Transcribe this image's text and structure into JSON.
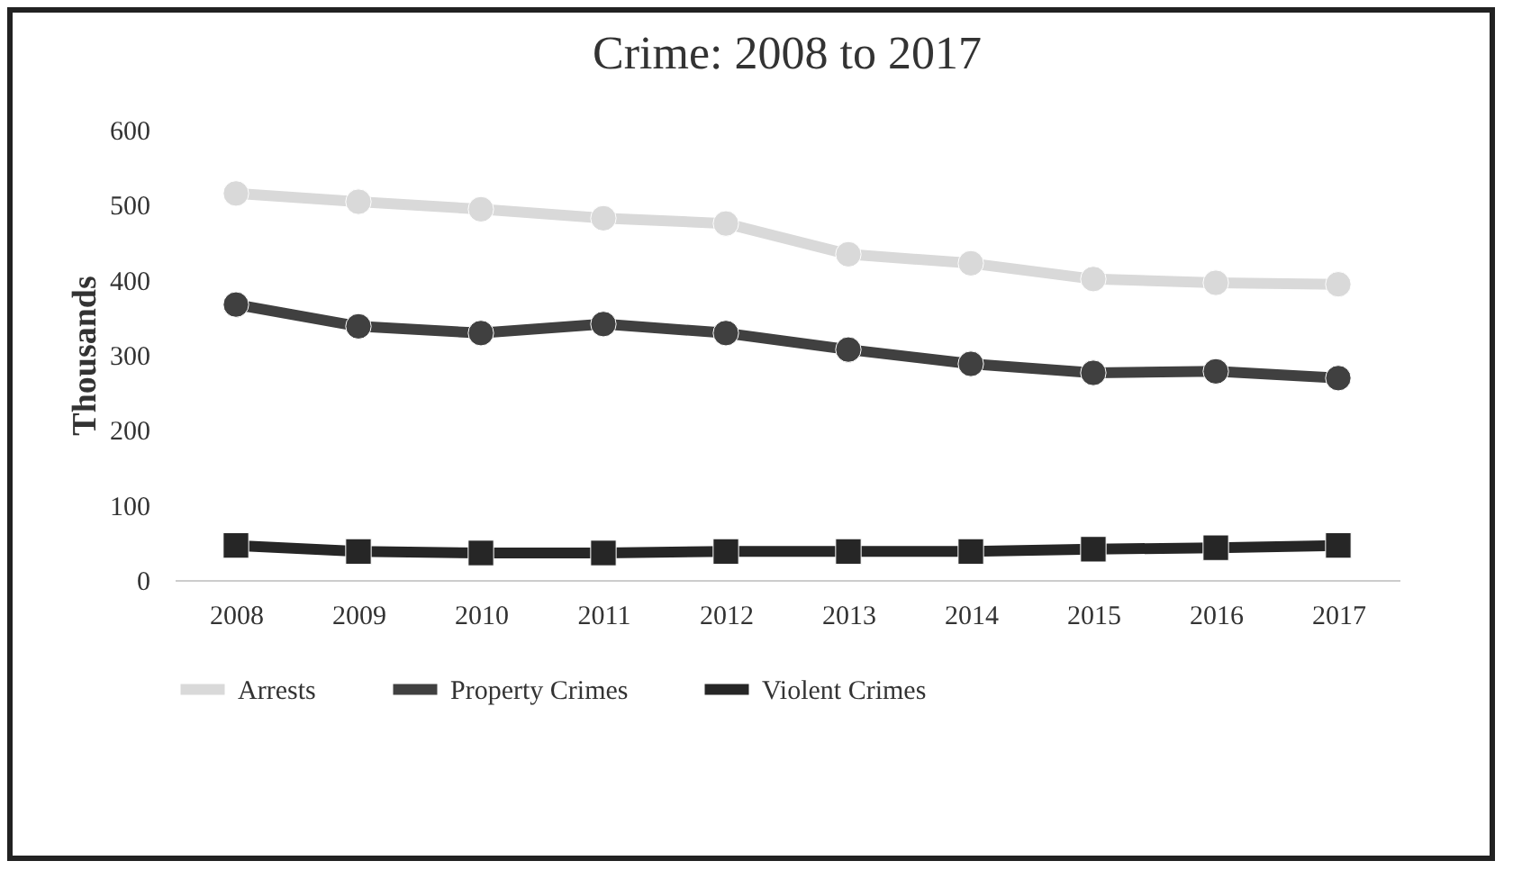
{
  "chart_data": {
    "type": "line",
    "title": "Crime: 2008 to 2017",
    "ylabel": "Thousands",
    "categories": [
      "2008",
      "2009",
      "2010",
      "2011",
      "2012",
      "2013",
      "2014",
      "2015",
      "2016",
      "2017"
    ],
    "series": [
      {
        "name": "Arrests",
        "color": "#d9d9d9",
        "marker": "circle",
        "values": [
          515,
          504,
          494,
          482,
          475,
          434,
          422,
          401,
          396,
          394
        ]
      },
      {
        "name": "Property Crimes",
        "color": "#404040",
        "marker": "circle",
        "values": [
          367,
          338,
          329,
          341,
          329,
          307,
          288,
          276,
          278,
          269
        ]
      },
      {
        "name": "Violent Crimes",
        "color": "#262626",
        "marker": "square",
        "values": [
          46,
          38,
          36,
          36,
          38,
          38,
          38,
          41,
          43,
          46
        ]
      }
    ],
    "ylim": [
      0,
      600
    ],
    "yticks": [
      0,
      100,
      200,
      300,
      400,
      500,
      600
    ],
    "grid": false,
    "legend": "bottom"
  }
}
